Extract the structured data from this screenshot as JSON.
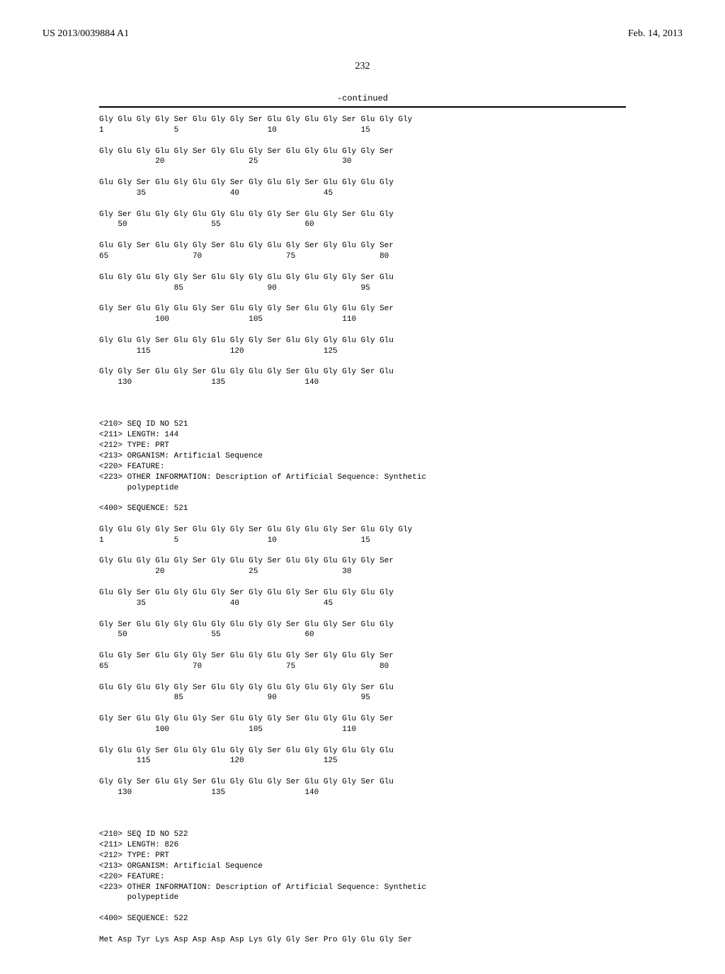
{
  "header": {
    "pub_number": "US 2013/0039884 A1",
    "pub_date": "Feb. 14, 2013"
  },
  "page_number": "232",
  "continued_label": "-continued",
  "seq1": {
    "rows": [
      {
        "aa": "Gly Glu Gly Gly Ser Glu Gly Gly Ser Glu Gly Glu Gly Ser Glu Gly Gly",
        "nums": [
          "1",
          "",
          "",
          "",
          "5",
          "",
          "",
          "",
          "",
          "10",
          "",
          "",
          "",
          "",
          "15",
          "",
          ""
        ]
      },
      {
        "aa": "Gly Glu Gly Glu Gly Ser Gly Glu Gly Ser Glu Gly Glu Gly Gly Ser",
        "nums": [
          "",
          "",
          "",
          "20",
          "",
          "",
          "",
          "",
          "25",
          "",
          "",
          "",
          "",
          "30",
          "",
          ""
        ]
      },
      {
        "aa": "Glu Gly Ser Glu Gly Glu Gly Ser Gly Glu Gly Ser Glu Gly Glu Gly",
        "nums": [
          "",
          "",
          "35",
          "",
          "",
          "",
          "",
          "40",
          "",
          "",
          "",
          "",
          "45",
          "",
          "",
          ""
        ]
      },
      {
        "aa": "Gly Ser Glu Gly Gly Glu Gly Glu Gly Gly Ser Glu Gly Ser Glu Gly",
        "nums": [
          "",
          "50",
          "",
          "",
          "",
          "",
          "55",
          "",
          "",
          "",
          "",
          "60",
          "",
          "",
          "",
          ""
        ]
      },
      {
        "aa": "Glu Gly Ser Glu Gly Gly Ser Glu Gly Glu Gly Ser Gly Glu Gly Ser",
        "nums": [
          "65",
          "",
          "",
          "",
          "",
          "70",
          "",
          "",
          "",
          "",
          "75",
          "",
          "",
          "",
          "",
          "80"
        ]
      },
      {
        "aa": "Glu Gly Glu Gly Gly Ser Glu Gly Gly Glu Gly Glu Gly Gly Ser Glu",
        "nums": [
          "",
          "",
          "",
          "",
          "85",
          "",
          "",
          "",
          "",
          "90",
          "",
          "",
          "",
          "",
          "95",
          ""
        ]
      },
      {
        "aa": "Gly Ser Glu Gly Glu Gly Ser Glu Gly Gly Ser Glu Gly Glu Gly Ser",
        "nums": [
          "",
          "",
          "",
          "100",
          "",
          "",
          "",
          "",
          "105",
          "",
          "",
          "",
          "",
          "110",
          "",
          ""
        ]
      },
      {
        "aa": "Gly Glu Gly Ser Glu Gly Glu Gly Gly Ser Glu Gly Gly Glu Gly Glu",
        "nums": [
          "",
          "",
          "115",
          "",
          "",
          "",
          "",
          "120",
          "",
          "",
          "",
          "",
          "125",
          "",
          "",
          ""
        ]
      },
      {
        "aa": "Gly Gly Ser Glu Gly Ser Glu Gly Glu Gly Ser Glu Gly Gly Ser Glu",
        "nums": [
          "",
          "130",
          "",
          "",
          "",
          "",
          "135",
          "",
          "",
          "",
          "",
          "140",
          "",
          "",
          "",
          ""
        ]
      }
    ]
  },
  "meta1": {
    "seq_id": "<210> SEQ ID NO 521",
    "length": "<211> LENGTH: 144",
    "type": "<212> TYPE: PRT",
    "organism": "<213> ORGANISM: Artificial Sequence",
    "feature": "<220> FEATURE:",
    "other_info": "<223> OTHER INFORMATION: Description of Artificial Sequence: Synthetic",
    "other_info2": "      polypeptide",
    "sequence_label": "<400> SEQUENCE: 521"
  },
  "seq2": {
    "rows": [
      {
        "aa": "Gly Glu Gly Gly Ser Glu Gly Gly Ser Glu Gly Glu Gly Ser Glu Gly Gly",
        "nums": [
          "1",
          "",
          "",
          "",
          "5",
          "",
          "",
          "",
          "",
          "10",
          "",
          "",
          "",
          "",
          "15",
          "",
          ""
        ]
      },
      {
        "aa": "Gly Glu Gly Glu Gly Ser Gly Glu Gly Ser Glu Gly Glu Gly Gly Ser",
        "nums": [
          "",
          "",
          "",
          "20",
          "",
          "",
          "",
          "",
          "25",
          "",
          "",
          "",
          "",
          "30",
          "",
          ""
        ]
      },
      {
        "aa": "Glu Gly Ser Glu Gly Glu Gly Ser Gly Glu Gly Ser Glu Gly Glu Gly",
        "nums": [
          "",
          "",
          "35",
          "",
          "",
          "",
          "",
          "40",
          "",
          "",
          "",
          "",
          "45",
          "",
          "",
          ""
        ]
      },
      {
        "aa": "Gly Ser Glu Gly Gly Glu Gly Glu Gly Gly Ser Glu Gly Ser Glu Gly",
        "nums": [
          "",
          "50",
          "",
          "",
          "",
          "",
          "55",
          "",
          "",
          "",
          "",
          "60",
          "",
          "",
          "",
          ""
        ]
      },
      {
        "aa": "Glu Gly Ser Glu Gly Gly Ser Glu Gly Glu Gly Ser Gly Glu Gly Ser",
        "nums": [
          "65",
          "",
          "",
          "",
          "",
          "70",
          "",
          "",
          "",
          "",
          "75",
          "",
          "",
          "",
          "",
          "80"
        ]
      },
      {
        "aa": "Glu Gly Glu Gly Gly Ser Glu Gly Gly Glu Gly Glu Gly Gly Ser Glu",
        "nums": [
          "",
          "",
          "",
          "",
          "85",
          "",
          "",
          "",
          "",
          "90",
          "",
          "",
          "",
          "",
          "95",
          ""
        ]
      },
      {
        "aa": "Gly Ser Glu Gly Glu Gly Ser Glu Gly Gly Ser Glu Gly Glu Gly Ser",
        "nums": [
          "",
          "",
          "",
          "100",
          "",
          "",
          "",
          "",
          "105",
          "",
          "",
          "",
          "",
          "110",
          "",
          ""
        ]
      },
      {
        "aa": "Gly Glu Gly Ser Glu Gly Glu Gly Gly Ser Glu Gly Gly Glu Gly Glu",
        "nums": [
          "",
          "",
          "115",
          "",
          "",
          "",
          "",
          "120",
          "",
          "",
          "",
          "",
          "125",
          "",
          "",
          ""
        ]
      },
      {
        "aa": "Gly Gly Ser Glu Gly Ser Glu Gly Glu Gly Ser Glu Gly Gly Ser Glu",
        "nums": [
          "",
          "130",
          "",
          "",
          "",
          "",
          "135",
          "",
          "",
          "",
          "",
          "140",
          "",
          "",
          "",
          ""
        ]
      }
    ]
  },
  "meta2": {
    "seq_id": "<210> SEQ ID NO 522",
    "length": "<211> LENGTH: 826",
    "type": "<212> TYPE: PRT",
    "organism": "<213> ORGANISM: Artificial Sequence",
    "feature": "<220> FEATURE:",
    "other_info": "<223> OTHER INFORMATION: Description of Artificial Sequence: Synthetic",
    "other_info2": "      polypeptide",
    "sequence_label": "<400> SEQUENCE: 522"
  },
  "seq3_first": "Met Asp Tyr Lys Asp Asp Asp Asp Lys Gly Gly Ser Pro Gly Glu Gly Ser"
}
